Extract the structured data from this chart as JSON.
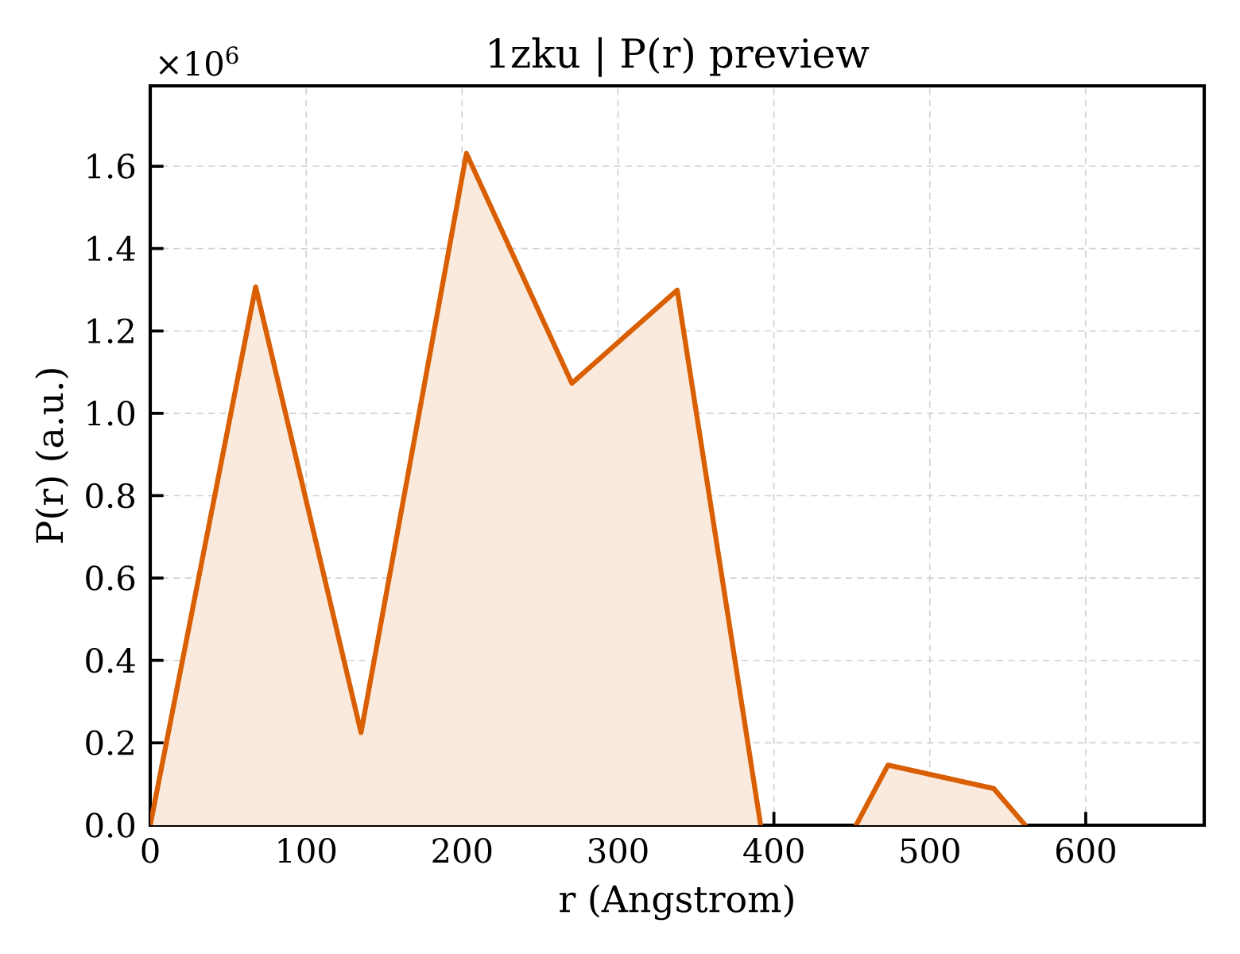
{
  "chart_data": {
    "type": "area",
    "title": "1zku | P(r) preview",
    "xlabel": "r (Angstrom)",
    "ylabel": "P(r) (a.u.)",
    "annotations": [
      "×10$^{6}$"
    ],
    "x": [
      0,
      67.6,
      135.2,
      202.8,
      270.4,
      338,
      391.5,
      422,
      452.7,
      473.2,
      541,
      561.2
    ],
    "values": [
      0,
      1.307,
      0.225,
      1.631,
      1.073,
      1.299,
      0,
      null,
      0,
      0.146,
      0.089,
      0
    ],
    "color": "#d95f02",
    "xlim": [
      0,
      676
    ],
    "ylim": [
      0,
      1.795
    ],
    "xticks": [
      0,
      100,
      200,
      300,
      400,
      500,
      600
    ],
    "yticks": [
      {
        "value": 0,
        "label": "0.0"
      },
      0.2,
      0.4,
      0.6,
      0.8,
      {
        "value": 1,
        "label": "1.0"
      },
      1.2,
      1.4,
      1.6
    ],
    "grid": true
  }
}
